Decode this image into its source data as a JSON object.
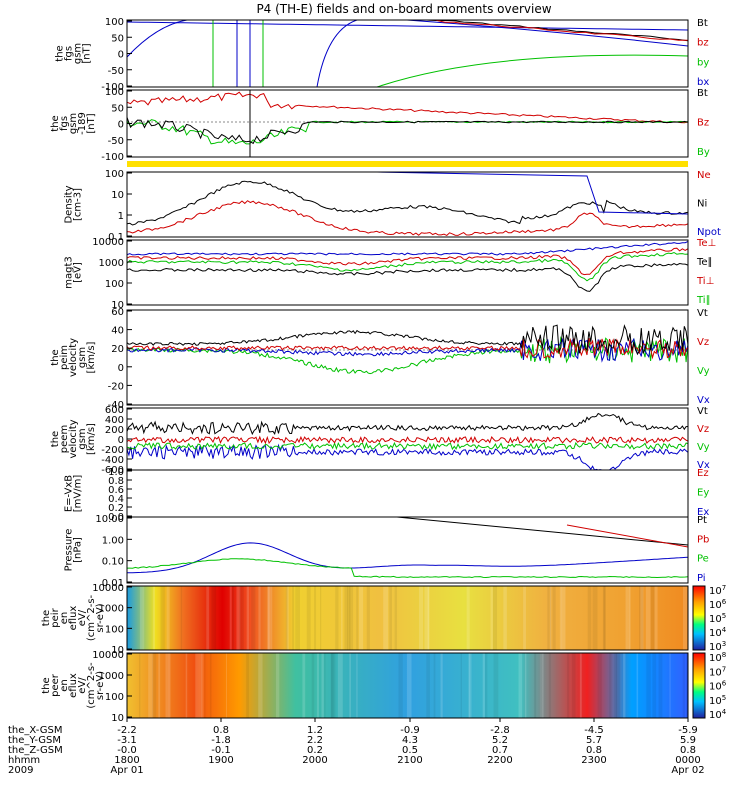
{
  "chart_data": {
    "type": "line",
    "title": "P4 (TH-E) fields and on-board moments overview",
    "panels": [
      {
        "key": "fgs",
        "ylabel": [
          "the",
          "fgs",
          "gsm",
          "[nT]"
        ],
        "ticks": [
          "100",
          "50",
          "0",
          "-50",
          "-100"
        ],
        "legend": [
          {
            "text": "Bt",
            "color": "#000000"
          },
          {
            "text": "bz",
            "color": "#d00000"
          },
          {
            "text": "by",
            "color": "#00c000"
          },
          {
            "text": "bx",
            "color": "#0000c8"
          }
        ]
      },
      {
        "key": "fgs2",
        "ylabel": [
          "the",
          "fgs",
          "gsm",
          "-189",
          "[nT]"
        ],
        "ticks": [
          "100",
          "50",
          "0",
          "-50",
          "-100"
        ],
        "legend": [
          {
            "text": "Bt",
            "color": "#000000"
          },
          {
            "text": "Bz",
            "color": "#d00000"
          },
          {
            "text": "By",
            "color": "#00c000"
          }
        ]
      },
      {
        "key": "density",
        "ylabel": [
          "Density",
          "[cm-3]"
        ],
        "ticks": [
          "100",
          "10",
          "1",
          "0.1"
        ],
        "legend": [
          {
            "text": "Ne",
            "color": "#d00000"
          },
          {
            "text": "Ni",
            "color": "#000000"
          },
          {
            "text": "Npot",
            "color": "#0000c8"
          }
        ]
      },
      {
        "key": "temp",
        "ylabel": [
          "magt3",
          "[eV]"
        ],
        "ticks": [
          "10000",
          "1000",
          "100",
          "10"
        ],
        "legend": [
          {
            "text": "Te⊥",
            "color": "#d00000"
          },
          {
            "text": "Te∥",
            "color": "#000000"
          },
          {
            "text": "Ti⊥",
            "color": "#d00000"
          },
          {
            "text": "Ti∥",
            "color": "#00c000"
          }
        ]
      },
      {
        "key": "peim",
        "ylabel": [
          "the",
          "peim",
          "velocity",
          "gsm",
          "[km/s]"
        ],
        "ticks": [
          "60",
          "40",
          "20",
          "0",
          "-20",
          "-40"
        ],
        "legend": [
          {
            "text": "Vt",
            "color": "#000000"
          },
          {
            "text": "Vz",
            "color": "#d00000"
          },
          {
            "text": "Vy",
            "color": "#00c000"
          },
          {
            "text": "Vx",
            "color": "#0000c8"
          }
        ]
      },
      {
        "key": "peem",
        "ylabel": [
          "the",
          "peem",
          "velocity",
          "gsm",
          "[km/s]"
        ],
        "ticks": [
          "600",
          "400",
          "200",
          "0",
          "-200",
          "-400",
          "-600"
        ],
        "legend": [
          {
            "text": "Vt",
            "color": "#000000"
          },
          {
            "text": "Vz",
            "color": "#d00000"
          },
          {
            "text": "Vy",
            "color": "#00c000"
          },
          {
            "text": "Vx",
            "color": "#0000c8"
          }
        ]
      },
      {
        "key": "efield",
        "ylabel": [
          "E=-VxB",
          "[mV/m]"
        ],
        "ticks": [
          "1.0",
          "0.8",
          "0.6",
          "0.4",
          "0.2",
          "0.0"
        ],
        "legend": [
          {
            "text": "Ez",
            "color": "#d00000"
          },
          {
            "text": "Ey",
            "color": "#00c000"
          },
          {
            "text": "Ex",
            "color": "#0000c8"
          }
        ]
      },
      {
        "key": "pressure",
        "ylabel": [
          "Pressure",
          "[nPa]"
        ],
        "ticks": [
          "10.00",
          "1.00",
          "0.10",
          "0.01"
        ],
        "legend": [
          {
            "text": "Pt",
            "color": "#000000"
          },
          {
            "text": "Pb",
            "color": "#d00000"
          },
          {
            "text": "Pe",
            "color": "#00c000"
          },
          {
            "text": "Pi",
            "color": "#0000c8"
          }
        ]
      },
      {
        "key": "peir",
        "ylabel": [
          "the",
          "peir",
          "en",
          "eflux",
          "eV/",
          "(cm^2-s-",
          "sr-eV)"
        ],
        "ticks": [
          "10000",
          "1000",
          "100",
          "10"
        ],
        "colorbar": [
          "10^7",
          "10^6",
          "10^5",
          "10^4",
          "10^3"
        ]
      },
      {
        "key": "peer",
        "ylabel": [
          "the",
          "peer",
          "en",
          "eflux",
          "eV/",
          "(cm^2-s-",
          "sr-eV)"
        ],
        "ticks": [
          "10000",
          "1000",
          "100",
          "10"
        ],
        "colorbar": [
          "10^8",
          "10^7",
          "10^6",
          "10^5",
          "10^4"
        ]
      }
    ],
    "x_axis": {
      "row_labels": [
        "the_X-GSM",
        "the_Y-GSM",
        "the_Z-GSM",
        "hhmm",
        "2009"
      ],
      "columns": [
        [
          "-2.2",
          "-3.1",
          "-0.0",
          "1800",
          "Apr 01"
        ],
        [
          "0.8",
          "-1.8",
          "-0.1",
          "1900",
          ""
        ],
        [
          "1.2",
          "2.2",
          "0.2",
          "2000",
          ""
        ],
        [
          "-0.9",
          "4.3",
          "0.5",
          "2100",
          ""
        ],
        [
          "-2.8",
          "5.2",
          "0.7",
          "2200",
          ""
        ],
        [
          "-4.5",
          "5.7",
          "0.8",
          "2300",
          ""
        ],
        [
          "-5.9",
          "5.9",
          "0.8",
          "0000",
          "Apr 02"
        ]
      ]
    }
  }
}
